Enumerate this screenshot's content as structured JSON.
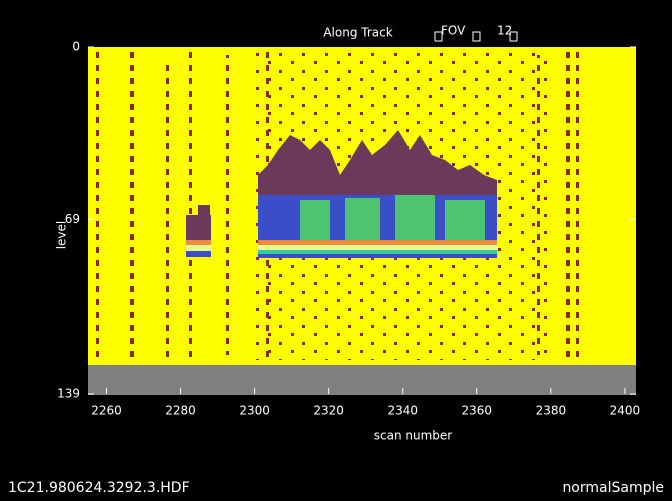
{
  "header": {
    "title": "Along Track",
    "fov_label": "FOV",
    "fov_value": "12"
  },
  "chart_data": {
    "type": "heatmap",
    "xlabel": "scan number",
    "ylabel": "level",
    "xlim": [
      2255,
      2403
    ],
    "ylim": [
      0,
      139
    ],
    "xticks": [
      2260,
      2280,
      2300,
      2320,
      2340,
      2360,
      2380,
      2400
    ],
    "yticks": [
      0,
      69,
      139
    ]
  },
  "footer": {
    "file": "1C21.980624.3292.3.HDF",
    "mode": "normalSample"
  }
}
